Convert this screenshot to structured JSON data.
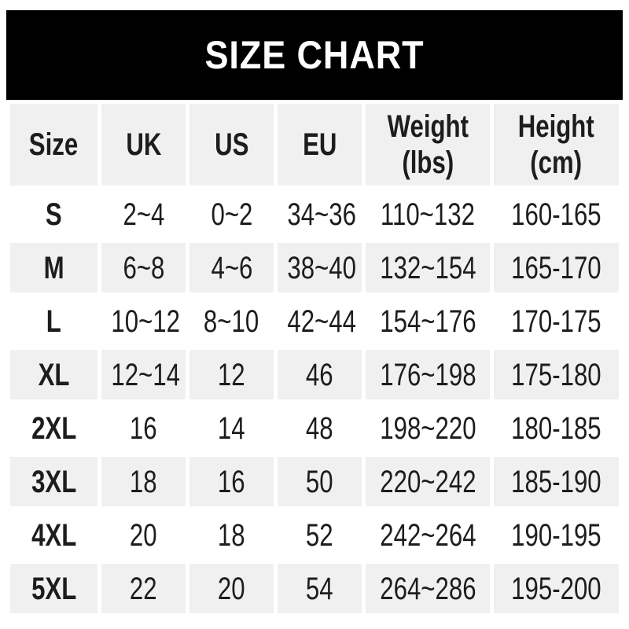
{
  "banner": {
    "title": "SIZE CHART"
  },
  "colors": {
    "banner_bg": "#000000",
    "banner_text": "#ffffff",
    "stripe_bg": "#f0f0f0",
    "page_bg": "#ffffff",
    "text": "#1d1d1f"
  },
  "table": {
    "columns": [
      {
        "label": "Size"
      },
      {
        "label": "UK"
      },
      {
        "label": "US"
      },
      {
        "label": "EU"
      },
      {
        "label": "Weight",
        "sub": "(lbs)"
      },
      {
        "label": "Height",
        "sub": "(cm)"
      }
    ]
  },
  "chart_data": {
    "type": "table",
    "title": "SIZE CHART",
    "columns": [
      "Size",
      "UK",
      "US",
      "EU",
      "Weight (lbs)",
      "Height (cm)"
    ],
    "rows": [
      [
        "S",
        "2~4",
        "0~2",
        "34~36",
        "110~132",
        "160-165"
      ],
      [
        "M",
        "6~8",
        "4~6",
        "38~40",
        "132~154",
        "165-170"
      ],
      [
        "L",
        "10~12",
        "8~10",
        "42~44",
        "154~176",
        "170-175"
      ],
      [
        "XL",
        "12~14",
        "12",
        "46",
        "176~198",
        "175-180"
      ],
      [
        "2XL",
        "16",
        "14",
        "48",
        "198~220",
        "180-185"
      ],
      [
        "3XL",
        "18",
        "16",
        "50",
        "220~242",
        "185-190"
      ],
      [
        "4XL",
        "20",
        "18",
        "52",
        "242~264",
        "190-195"
      ],
      [
        "5XL",
        "22",
        "20",
        "54",
        "264~286",
        "195-200"
      ]
    ]
  }
}
